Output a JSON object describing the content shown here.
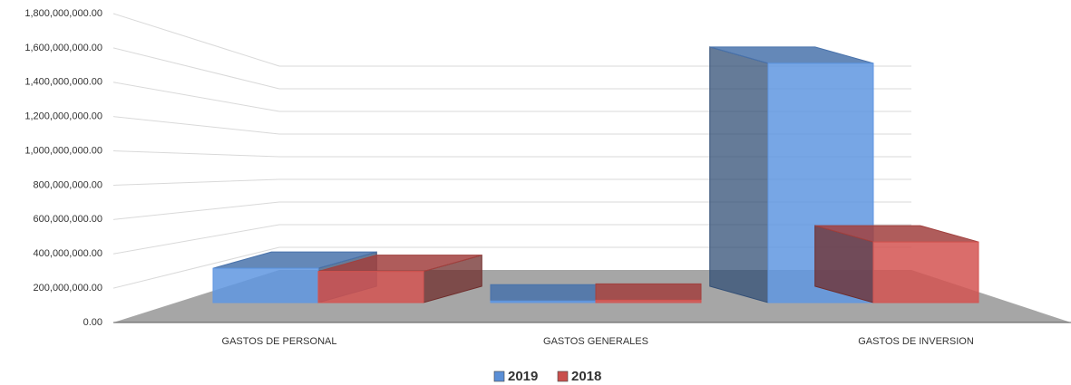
{
  "chart_data": {
    "type": "bar3d",
    "categories": [
      "GASTOS DE PERSONAL",
      "GASTOS GENERALES",
      "GASTOS DE INVERSION"
    ],
    "series": [
      {
        "name": "2019",
        "color": "#5b8fd6",
        "values": [
          215000000,
          10000000,
          1500000000
        ]
      },
      {
        "name": "2018",
        "color": "#c9504d",
        "values": [
          195000000,
          15000000,
          380000000
        ]
      }
    ],
    "ylim": [
      0,
      1800000000
    ],
    "yticks": [
      {
        "value": 0,
        "label": "0.00"
      },
      {
        "value": 200000000,
        "label": "200,000,000.00"
      },
      {
        "value": 400000000,
        "label": "400,000,000.00"
      },
      {
        "value": 600000000,
        "label": "600,000,000.00"
      },
      {
        "value": 800000000,
        "label": "800,000,000.00"
      },
      {
        "value": 1000000000,
        "label": "1,000,000,000.00"
      },
      {
        "value": 1200000000,
        "label": "1,200,000,000.00"
      },
      {
        "value": 1400000000,
        "label": "1,400,000,000.00"
      },
      {
        "value": 1600000000,
        "label": "1,600,000,000.00"
      },
      {
        "value": 1800000000,
        "label": "1,800,000,000.00"
      }
    ],
    "grid": true,
    "legend": "bottom"
  }
}
